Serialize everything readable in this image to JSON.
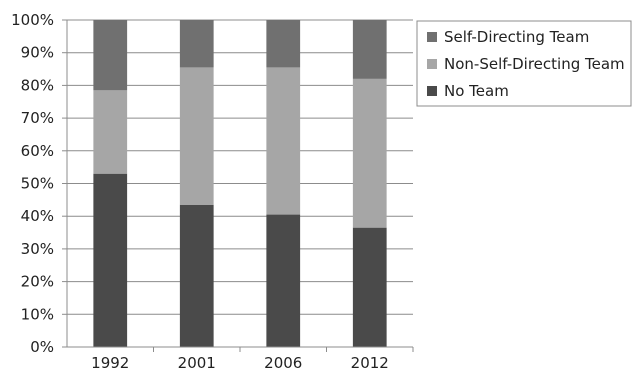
{
  "chart_data": {
    "type": "bar",
    "stacked": true,
    "percent": true,
    "categories": [
      "1992",
      "2001",
      "2006",
      "2012"
    ],
    "series": [
      {
        "name": "No Team",
        "values": [
          53,
          43.5,
          40.5,
          36.5
        ],
        "color": "#4a4a4a"
      },
      {
        "name": "Non-Self-Directing Team",
        "values": [
          25.5,
          42,
          45,
          45.5
        ],
        "color": "#a6a6a6"
      },
      {
        "name": "Self-Directing Team",
        "values": [
          21.5,
          14.5,
          14.5,
          18
        ],
        "color": "#707070"
      }
    ],
    "legend_order": [
      "Self-Directing Team",
      "Non-Self-Directing Team",
      "No Team"
    ],
    "ylim": [
      0,
      100
    ],
    "ytick_labels": [
      "0%",
      "10%",
      "20%",
      "30%",
      "40%",
      "50%",
      "60%",
      "70%",
      "80%",
      "90%",
      "100%"
    ],
    "grid": true,
    "legend_position": "right"
  }
}
